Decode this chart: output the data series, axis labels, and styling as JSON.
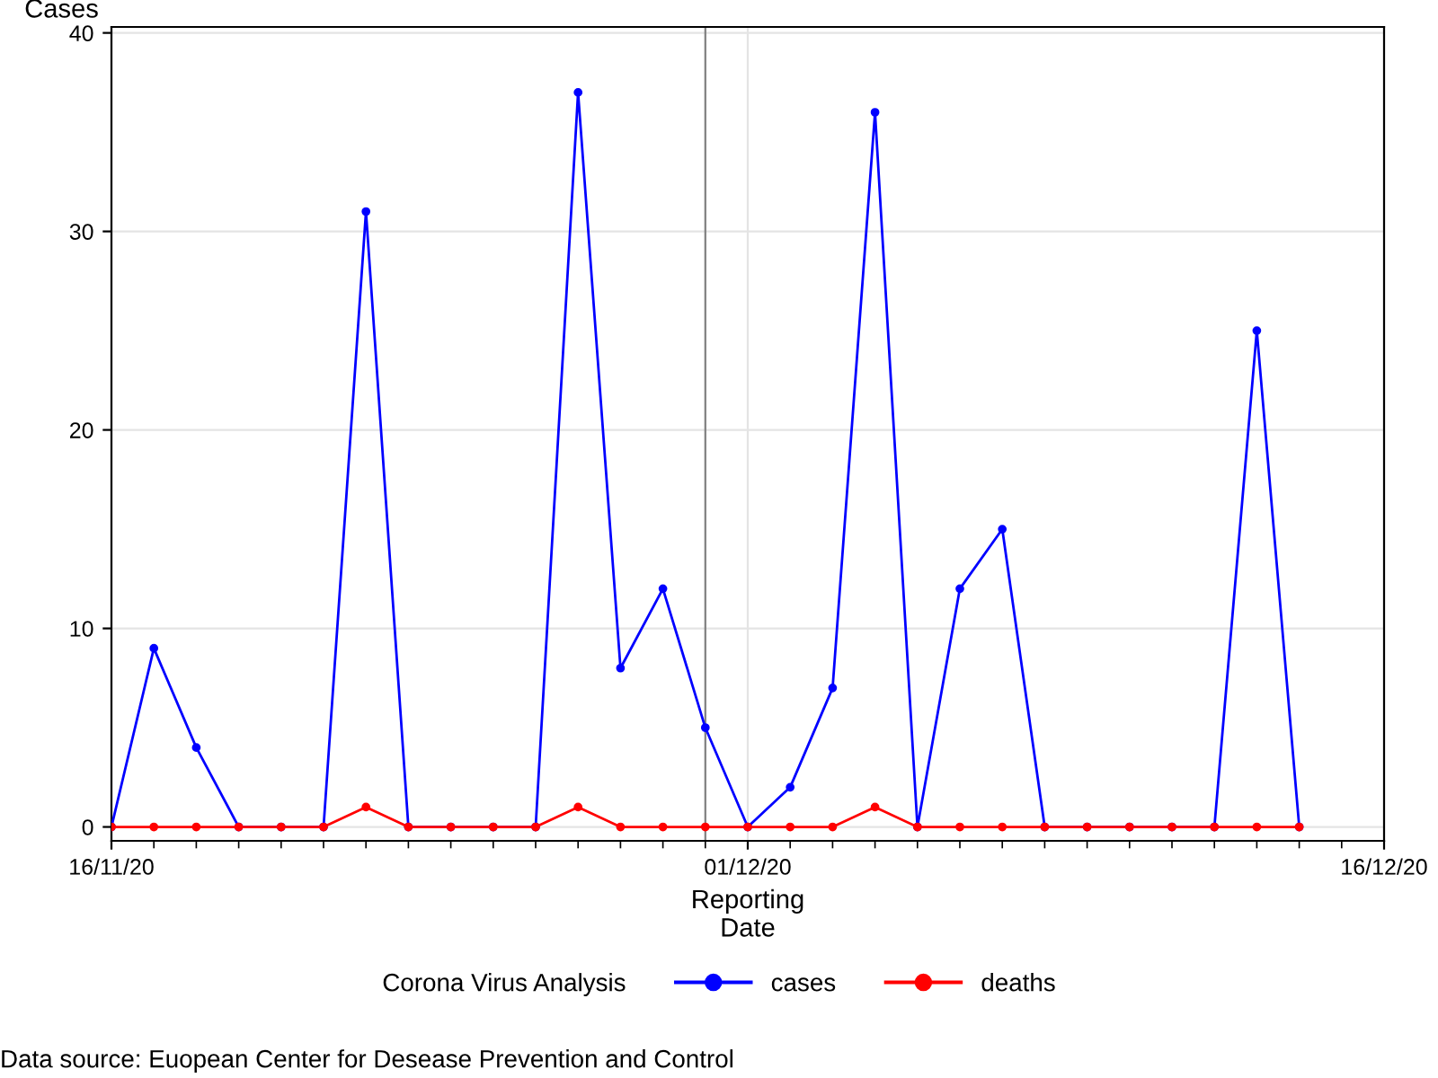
{
  "chart_data": {
    "type": "line",
    "xlabel": "Reporting\nDate",
    "ylabel": "Cases",
    "legend_title": "Corona Virus Analysis",
    "x": [
      "2020-11-16",
      "2020-11-17",
      "2020-11-18",
      "2020-11-19",
      "2020-11-20",
      "2020-11-21",
      "2020-11-22",
      "2020-11-23",
      "2020-11-24",
      "2020-11-25",
      "2020-11-26",
      "2020-11-27",
      "2020-11-28",
      "2020-11-29",
      "2020-11-30",
      "2020-12-01",
      "2020-12-02",
      "2020-12-03",
      "2020-12-04",
      "2020-12-05",
      "2020-12-06",
      "2020-12-07",
      "2020-12-08",
      "2020-12-09",
      "2020-12-10",
      "2020-12-11",
      "2020-12-12",
      "2020-12-13",
      "2020-12-14"
    ],
    "series": [
      {
        "name": "cases",
        "color": "#0000ff",
        "values": [
          0,
          9,
          4,
          0,
          0,
          0,
          31,
          0,
          0,
          0,
          0,
          37,
          8,
          12,
          5,
          0,
          2,
          7,
          36,
          0,
          12,
          15,
          0,
          0,
          0,
          0,
          0,
          25,
          0
        ]
      },
      {
        "name": "deaths",
        "color": "#ff0000",
        "values": [
          0,
          0,
          0,
          0,
          0,
          0,
          1,
          0,
          0,
          0,
          0,
          1,
          0,
          0,
          0,
          0,
          0,
          0,
          1,
          0,
          0,
          0,
          0,
          0,
          0,
          0,
          0,
          0,
          0
        ]
      }
    ],
    "xlim": [
      "2020-11-16",
      "2020-12-16"
    ],
    "xticks": [
      {
        "value": "2020-11-16",
        "label": "16/11/20"
      },
      {
        "value": "2020-12-01",
        "label": "01/12/20"
      },
      {
        "value": "2020-12-16",
        "label": "16/12/20"
      }
    ],
    "ylim": [
      -0.7,
      40.3
    ],
    "yticks": [
      0,
      10,
      20,
      30,
      40
    ],
    "ref_lines": [
      {
        "axis": "x",
        "value": "2020-11-30",
        "color": "#808080"
      }
    ],
    "grid": true,
    "legend": "bottom",
    "marker": "circle",
    "line_style": "solid",
    "annotations": [
      "Data source: Euopean Center for Desease Prevention and Control"
    ]
  }
}
